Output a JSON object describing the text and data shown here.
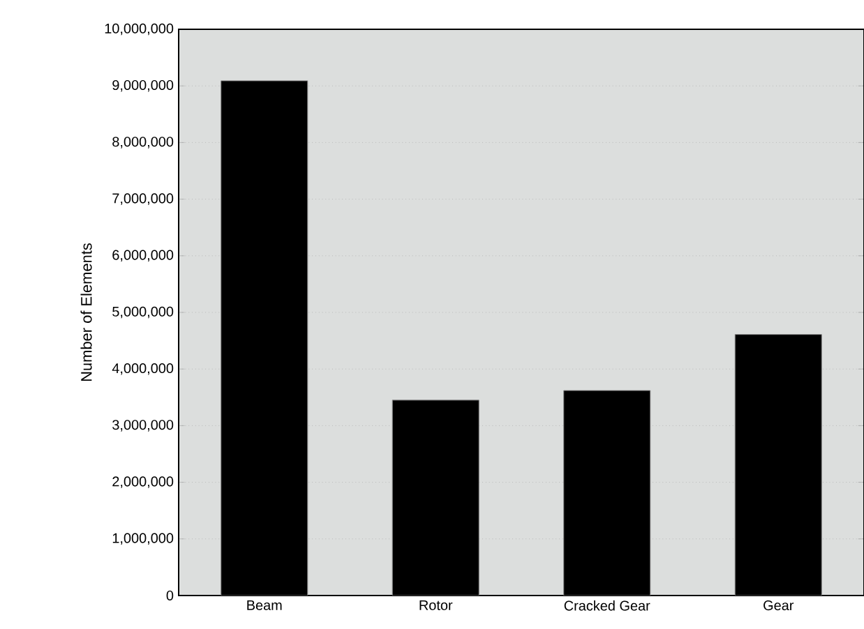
{
  "chart_data": {
    "type": "bar",
    "ylabel": "Number of Elements",
    "categories": [
      "Beam",
      "Rotor",
      "Cracked Gear",
      "Gear"
    ],
    "values": [
      9090000,
      3450000,
      3620000,
      4610000
    ],
    "color": "#000000",
    "ylim": [
      0,
      10000000
    ],
    "yticks": [
      {
        "value": 0,
        "label": "0"
      },
      {
        "value": 1000000,
        "label": "1,000,000"
      },
      {
        "value": 2000000,
        "label": "2,000,000"
      },
      {
        "value": 3000000,
        "label": "3,000,000"
      },
      {
        "value": 4000000,
        "label": "4,000,000"
      },
      {
        "value": 5000000,
        "label": "5,000,000"
      },
      {
        "value": 6000000,
        "label": "6,000,000"
      },
      {
        "value": 7000000,
        "label": "7,000,000"
      },
      {
        "value": 8000000,
        "label": "8,000,000"
      },
      {
        "value": 9000000,
        "label": "9,000,000"
      },
      {
        "value": 10000000,
        "label": "10,000,000"
      }
    ],
    "grid": "y"
  }
}
